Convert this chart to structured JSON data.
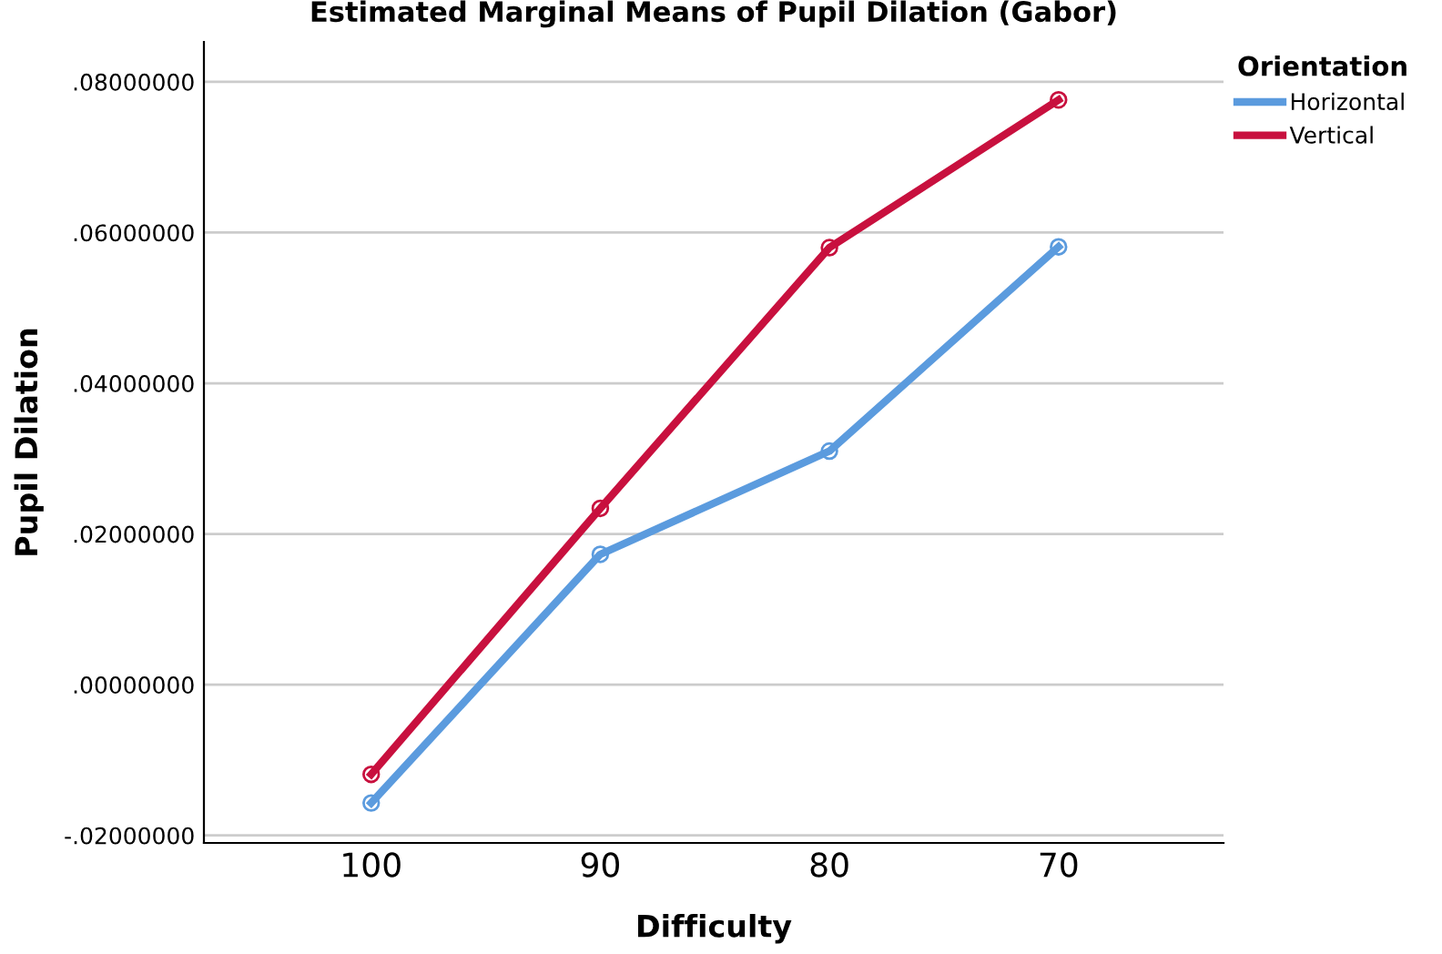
{
  "chart_data": {
    "type": "line",
    "title": "Estimated Marginal Means of Pupil Dilation (Gabor)",
    "xlabel": "Difficulty",
    "ylabel": "Pupil Dilation",
    "legend_title": "Orientation",
    "categories": [
      "100",
      "90",
      "80",
      "70"
    ],
    "series": [
      {
        "name": "Horizontal",
        "color": "#5b9bde",
        "values": [
          -0.0157,
          0.0173,
          0.031,
          0.0581
        ]
      },
      {
        "name": "Vertical",
        "color": "#c8103e",
        "values": [
          -0.0119,
          0.0234,
          0.058,
          0.0776
        ]
      }
    ],
    "ylim": [
      -0.021,
      0.0853
    ],
    "yticks": [
      {
        "value": -0.02,
        "label": "-.02000000"
      },
      {
        "value": 0.0,
        "label": ".00000000"
      },
      {
        "value": 0.02,
        "label": ".02000000"
      },
      {
        "value": 0.04,
        "label": ".04000000"
      },
      {
        "value": 0.06,
        "label": ".06000000"
      },
      {
        "value": 0.08,
        "label": ".08000000"
      }
    ],
    "grid": "y",
    "legend": "top right",
    "marker": "circle",
    "line_style": "solid"
  }
}
